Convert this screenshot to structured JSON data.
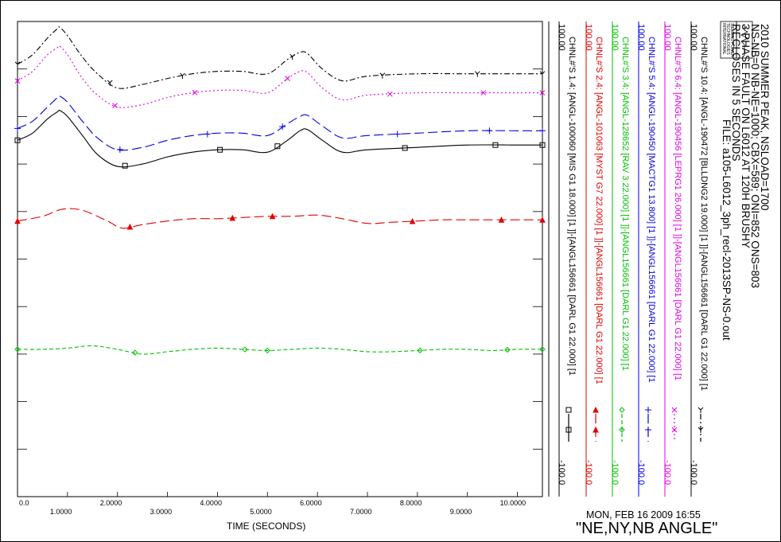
{
  "header": {
    "lines": [
      "2010 SUMMER PEAK, NSLOAD=1700",
      "NS-NB=0 NB-NE=1000; CBX=589; ONI=852 ONS=803",
      "3 PHASE FAULT ON L6012 AT 120H BRUSHY",
      "RECLOSES IN 5 SECONDS",
      "FILE: a105-L6012_3ph_recl-2013SP-NS-0.out"
    ],
    "logo_text": [
      "SIEMENS POWER",
      "TECHNOLOGIES",
      "INTERNATIONAL"
    ]
  },
  "footer": {
    "date": "MON, FEB 16 2009  16:55",
    "caption": "\"NE,NY,NB ANGLE\""
  },
  "chart_data": {
    "type": "line",
    "xlabel": "TIME (SECONDS)",
    "xlim": [
      0,
      10.5
    ],
    "x_ticks": [
      "0.0",
      "1.0000",
      "2.0000",
      "3.0000",
      "4.0000",
      "5.0000",
      "6.0000",
      "7.0000",
      "8.0000",
      "9.0000",
      "10.0000"
    ],
    "ylim": [
      -100,
      100
    ],
    "colors": {
      "black": "#000000",
      "red": "#e00000",
      "green": "#00c000",
      "blue": "#0000e0",
      "magenta": "#e000e0"
    },
    "series": [
      {
        "name": "CHNL#'S 10.4: [ANGL-190472 [BLLDNG2 19.000] [1 ]]-[ANGL156661 [DARL G1 22.000] [1",
        "ymax": "100.00",
        "ymin": "-100.0",
        "color": "#000000",
        "dash": "7,3,2,3",
        "marker": "y",
        "x": [
          0,
          0.3,
          0.6,
          0.8,
          0.85,
          1.0,
          1.3,
          1.6,
          2.0,
          2.5,
          3.0,
          3.5,
          4.0,
          4.5,
          5.0,
          5.4,
          5.65,
          5.8,
          6.1,
          6.5,
          7.0,
          8.0,
          9.0,
          10.0,
          10.5
        ],
        "values": [
          82,
          86,
          93,
          97,
          97.5,
          94,
          85,
          78,
          72,
          73.5,
          76,
          78,
          79,
          79,
          78,
          84,
          87,
          86.5,
          80,
          75,
          77,
          78,
          78,
          78,
          78
        ]
      },
      {
        "name": "CHNL#'S 6.4: [ANGL-190456 [LEPRG1 26.000] [1 ]]-[ANGL156661 [DARL G1 22.000] [1",
        "ymax": "100.00",
        "ymin": "-100.0",
        "color": "#e000e0",
        "dash": "2,3",
        "marker": "x",
        "x": [
          0,
          0.3,
          0.6,
          0.8,
          0.85,
          1.0,
          1.3,
          1.6,
          2.0,
          2.5,
          3.0,
          3.5,
          4.0,
          4.5,
          5.0,
          5.4,
          5.65,
          5.8,
          6.1,
          6.5,
          7.0,
          8.0,
          9.0,
          10.0,
          10.5
        ],
        "values": [
          75,
          79,
          86,
          89,
          89.5,
          86,
          76,
          69,
          64,
          65,
          68,
          70,
          71,
          71,
          70,
          76,
          79,
          78.5,
          72,
          67,
          69,
          70,
          70,
          70,
          70
        ]
      },
      {
        "name": "CHNL#'S 5.4: [ANGL-190450 [MACTG1 13.800] [1 ]]-[ANGL156661 [DARL G1 22.000] [1",
        "ymax": "100.00",
        "ymin": "-100.0",
        "color": "#0000e0",
        "dash": "12,5",
        "marker": "+",
        "x": [
          0,
          0.3,
          0.6,
          0.8,
          0.85,
          1.0,
          1.3,
          1.6,
          2.0,
          2.5,
          3.0,
          3.5,
          4.0,
          4.5,
          5.0,
          5.4,
          5.65,
          5.8,
          6.1,
          6.5,
          7.0,
          8.0,
          9.0,
          10.0,
          10.5
        ],
        "values": [
          55,
          58,
          64,
          68,
          68.5,
          66,
          58,
          51,
          46,
          47,
          50,
          52,
          53,
          53,
          52,
          57,
          60,
          60.5,
          56,
          51,
          52,
          53,
          54,
          54,
          54
        ]
      },
      {
        "name": "CHNL#'S 1.4: [ANGL-100060 [MIS G1 18.000] [1 ]]-[ANGL156661 [DARL G1 22.000] [1",
        "ymax": "100.00",
        "ymin": "-100.0",
        "color": "#000000",
        "dash": "",
        "marker": "square",
        "x": [
          0,
          0.3,
          0.6,
          0.8,
          0.85,
          1.0,
          1.3,
          1.6,
          2.0,
          2.5,
          3.0,
          3.5,
          4.0,
          4.5,
          5.0,
          5.4,
          5.65,
          5.8,
          6.1,
          6.5,
          7.0,
          8.0,
          9.0,
          10.0,
          10.5
        ],
        "values": [
          50,
          53,
          59,
          62,
          62.5,
          60,
          52,
          44,
          39,
          40,
          43,
          45,
          46,
          46,
          45,
          50,
          54,
          54.5,
          50,
          45,
          46,
          47,
          48,
          48,
          48
        ]
      },
      {
        "name": "CHNL#'S 2.4: [ANGL-101063 [MYST G7 22.000] [1 ]]-[ANGL156661 [DARL G1 22.000] [1",
        "ymax": "100.00",
        "ymin": "-100.0",
        "color": "#e00000",
        "dash": "12,5",
        "marker": "triangle",
        "x": [
          0,
          0.5,
          0.9,
          1.3,
          1.8,
          2.1,
          2.5,
          3.0,
          3.5,
          4.0,
          4.5,
          5.0,
          5.5,
          6.0,
          6.5,
          7.0,
          7.5,
          8.0,
          8.5,
          9.0,
          10.0,
          10.5
        ],
        "values": [
          16,
          18,
          21,
          20.5,
          16,
          13,
          14.5,
          16,
          17,
          17,
          17.5,
          18,
          18,
          18.5,
          17,
          15,
          15.5,
          16,
          16.5,
          16.5,
          16.5,
          16.5
        ]
      },
      {
        "name": "CHNL#'S 3.4: [ANGL-128652 [RAV 3  22.000] [1 ]]-[ANGL156661 [DARL G1 22.000] [1",
        "ymax": "100.00",
        "ymin": "-100.0",
        "color": "#00c000",
        "dash": "5,3",
        "marker": "diamond",
        "x": [
          0,
          0.5,
          1.0,
          1.5,
          2.0,
          2.5,
          3.0,
          3.5,
          4.0,
          4.5,
          5.0,
          5.5,
          6.0,
          6.5,
          7.0,
          7.5,
          8.0,
          8.5,
          9.0,
          9.5,
          10.0,
          10.5
        ],
        "values": [
          -38,
          -38,
          -37.5,
          -36.5,
          -38,
          -40,
          -39,
          -38,
          -37.5,
          -38,
          -38.5,
          -38,
          -37.5,
          -38,
          -39,
          -39,
          -38.5,
          -38,
          -38,
          -38.5,
          -38,
          -38
        ]
      }
    ]
  }
}
